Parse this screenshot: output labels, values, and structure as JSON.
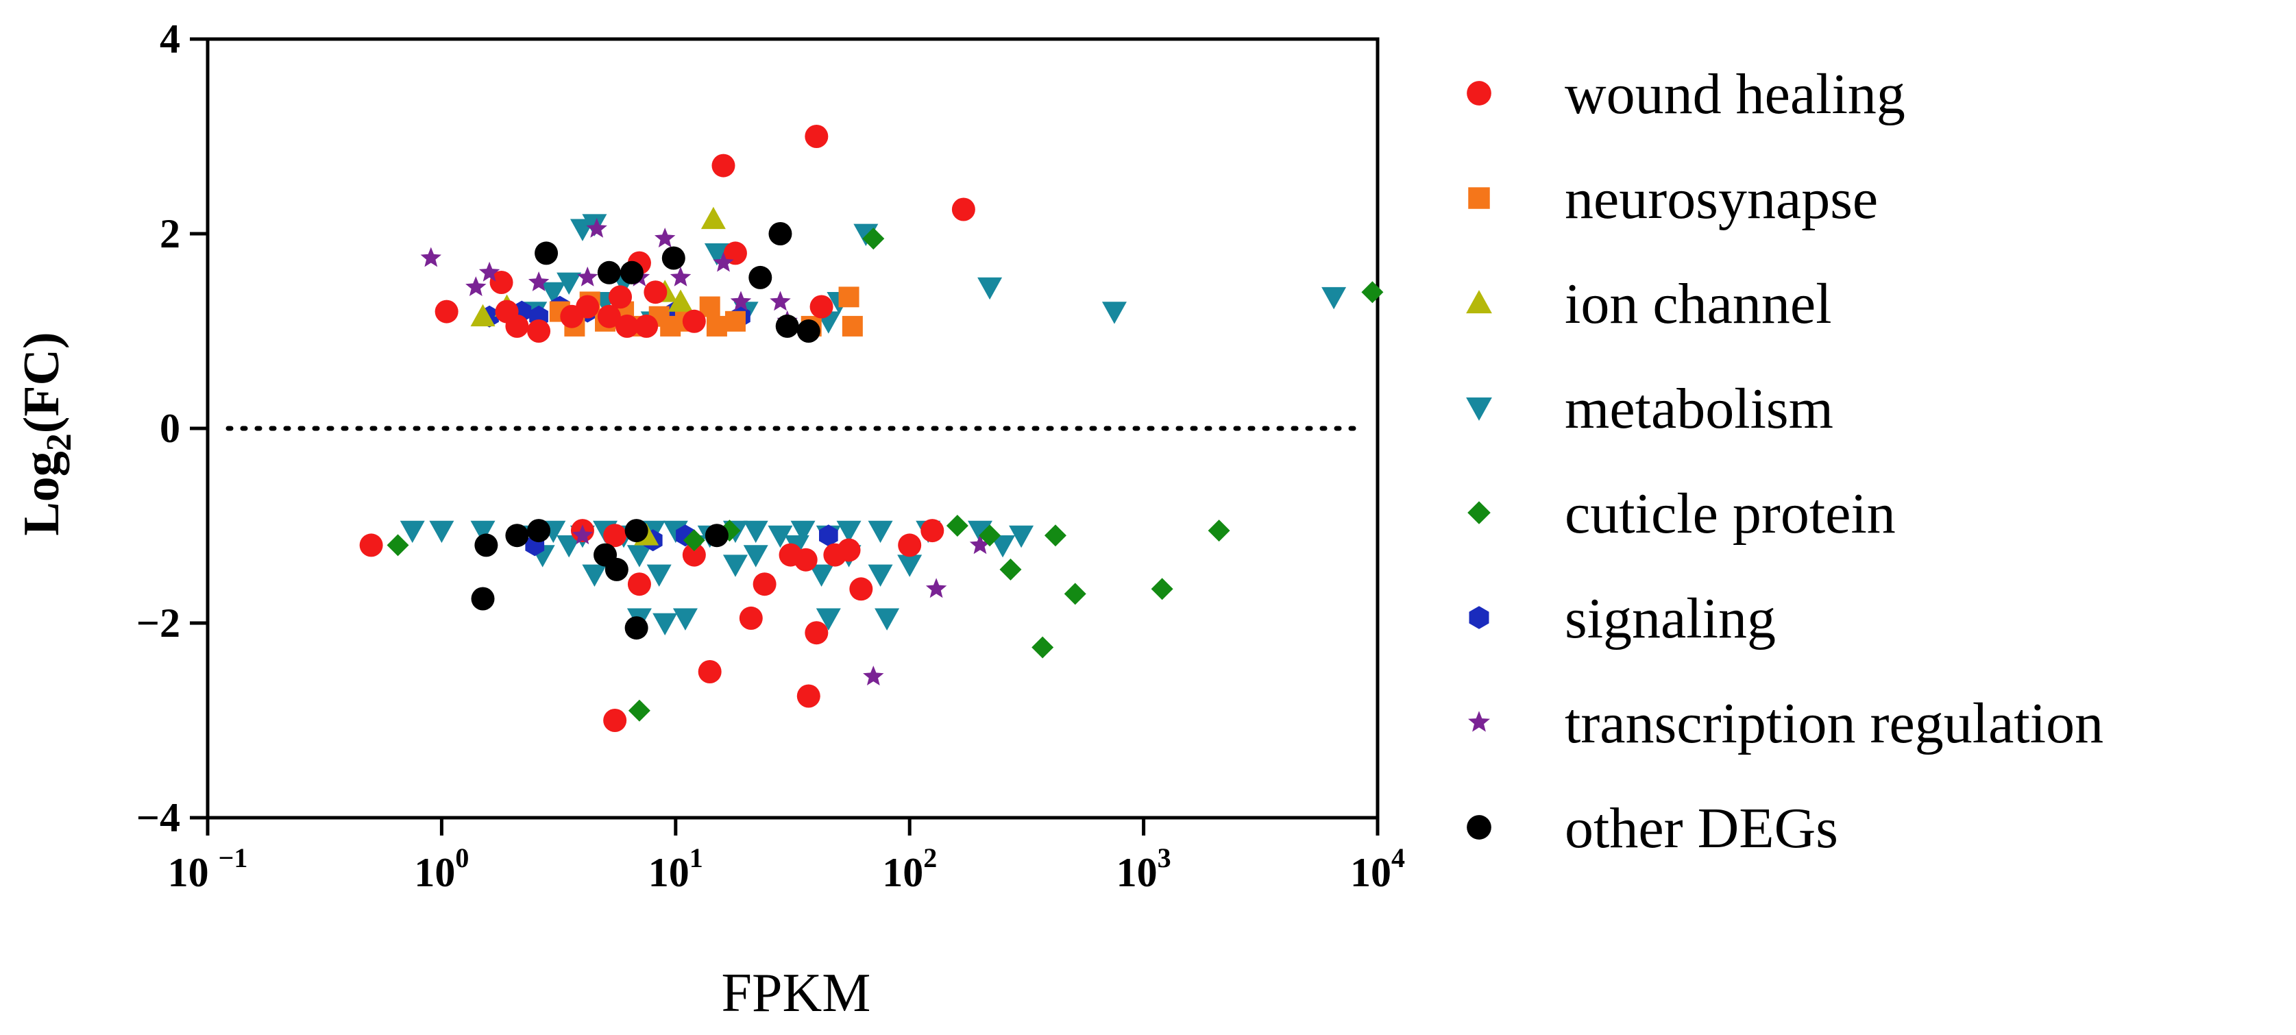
{
  "chart_data": {
    "type": "scatter",
    "title": "",
    "xlabel": "FPKM",
    "ylabel_main": "Log",
    "ylabel_sub": "2",
    "ylabel_tail": "(FC)",
    "xscale": "log10",
    "xlim": [
      0.1,
      10000
    ],
    "ylim": [
      -4,
      4
    ],
    "x_ticks": [
      {
        "value": 0.1,
        "base": "10",
        "exp": "−1"
      },
      {
        "value": 1,
        "base": "10",
        "exp": "0"
      },
      {
        "value": 10,
        "base": "10",
        "exp": "1"
      },
      {
        "value": 100,
        "base": "10",
        "exp": "2"
      },
      {
        "value": 1000,
        "base": "10",
        "exp": "3"
      },
      {
        "value": 10000,
        "base": "10",
        "exp": "4"
      }
    ],
    "y_ticks": [
      {
        "value": 4,
        "label": "4"
      },
      {
        "value": 2,
        "label": "2"
      },
      {
        "value": 0,
        "label": "0"
      },
      {
        "value": -2,
        "label": "−2"
      },
      {
        "value": -4,
        "label": "−4"
      }
    ],
    "reference_line": {
      "y": 0,
      "style": "dotted"
    },
    "legend_position": "right",
    "series": [
      {
        "name": "metabolism",
        "marker": "triangle-down",
        "color": "#17889e",
        "points": [
          [
            2.5,
            1.2
          ],
          [
            3,
            1.4
          ],
          [
            3.5,
            1.5
          ],
          [
            4,
            2.05
          ],
          [
            4.5,
            2.1
          ],
          [
            5,
            1.3
          ],
          [
            6,
            1.5
          ],
          [
            8,
            1.1
          ],
          [
            15,
            1.8
          ],
          [
            20,
            1.2
          ],
          [
            45,
            1.1
          ],
          [
            50,
            1.3
          ],
          [
            65,
            2.0
          ],
          [
            220,
            1.45
          ],
          [
            750,
            1.2
          ],
          [
            6500,
            1.35
          ],
          [
            0.75,
            -1.05
          ],
          [
            1,
            -1.05
          ],
          [
            1.5,
            -1.05
          ],
          [
            2.5,
            -1.1
          ],
          [
            3,
            -1.05
          ],
          [
            4,
            -1.1
          ],
          [
            5,
            -1.05
          ],
          [
            6,
            -1.1
          ],
          [
            8,
            -1.05
          ],
          [
            10,
            -1.05
          ],
          [
            14,
            -1.1
          ],
          [
            18,
            -1.05
          ],
          [
            22,
            -1.05
          ],
          [
            28,
            -1.1
          ],
          [
            35,
            -1.05
          ],
          [
            45,
            -1.1
          ],
          [
            55,
            -1.05
          ],
          [
            75,
            -1.05
          ],
          [
            120,
            -1.05
          ],
          [
            200,
            -1.05
          ],
          [
            300,
            -1.1
          ],
          [
            2.7,
            -1.3
          ],
          [
            3.5,
            -1.2
          ],
          [
            4.5,
            -1.5
          ],
          [
            7,
            -1.3
          ],
          [
            8.5,
            -1.5
          ],
          [
            12,
            -1.2
          ],
          [
            18,
            -1.4
          ],
          [
            22,
            -1.3
          ],
          [
            33,
            -1.2
          ],
          [
            42,
            -1.5
          ],
          [
            55,
            -1.3
          ],
          [
            75,
            -1.5
          ],
          [
            100,
            -1.4
          ],
          [
            250,
            -1.2
          ],
          [
            7,
            -1.95
          ],
          [
            9,
            -2.0
          ],
          [
            11,
            -1.95
          ],
          [
            45,
            -1.95
          ],
          [
            80,
            -1.95
          ]
        ]
      },
      {
        "name": "signaling",
        "marker": "hexagon",
        "color": "#1a2bbd",
        "points": [
          [
            1.6,
            1.15
          ],
          [
            2.2,
            1.2
          ],
          [
            2.6,
            1.15
          ],
          [
            3.2,
            1.25
          ],
          [
            4.2,
            1.2
          ],
          [
            5.5,
            1.15
          ],
          [
            10,
            1.2
          ],
          [
            19,
            1.15
          ],
          [
            2.5,
            -1.2
          ],
          [
            5.5,
            -1.1
          ],
          [
            8,
            -1.15
          ],
          [
            11,
            -1.1
          ],
          [
            45,
            -1.1
          ]
        ]
      },
      {
        "name": "neurosynapse",
        "marker": "square",
        "color": "#f5761a",
        "points": [
          [
            3.2,
            1.2
          ],
          [
            3.7,
            1.05
          ],
          [
            4.3,
            1.3
          ],
          [
            5,
            1.1
          ],
          [
            6,
            1.2
          ],
          [
            7,
            1.05
          ],
          [
            8.5,
            1.15
          ],
          [
            9.5,
            1.05
          ],
          [
            11,
            1.1
          ],
          [
            14,
            1.25
          ],
          [
            15,
            1.05
          ],
          [
            18,
            1.1
          ],
          [
            38,
            1.05
          ],
          [
            55,
            1.35
          ],
          [
            57,
            1.05
          ]
        ]
      },
      {
        "name": "ion channel",
        "marker": "triangle-up",
        "color": "#b5b80a",
        "points": [
          [
            1.5,
            1.15
          ],
          [
            1.9,
            1.25
          ],
          [
            9,
            1.4
          ],
          [
            10.5,
            1.3
          ],
          [
            14.5,
            2.15
          ],
          [
            7.5,
            -1.1
          ]
        ]
      },
      {
        "name": "wound healing",
        "marker": "circle",
        "color": "#f21a1a",
        "points": [
          [
            0.5,
            -1.2
          ],
          [
            1.05,
            1.2
          ],
          [
            1.8,
            1.5
          ],
          [
            1.9,
            1.2
          ],
          [
            2.1,
            1.05
          ],
          [
            2.6,
            1.0
          ],
          [
            3.6,
            1.15
          ],
          [
            4.2,
            1.25
          ],
          [
            5.2,
            1.15
          ],
          [
            5.8,
            1.35
          ],
          [
            6.2,
            1.05
          ],
          [
            7,
            1.7
          ],
          [
            7.5,
            1.05
          ],
          [
            8.2,
            1.4
          ],
          [
            12,
            1.1
          ],
          [
            16,
            2.7
          ],
          [
            18,
            1.8
          ],
          [
            40,
            3.0
          ],
          [
            42,
            1.25
          ],
          [
            170,
            2.25
          ],
          [
            4,
            -1.05
          ],
          [
            5.5,
            -1.1
          ],
          [
            7,
            -1.6
          ],
          [
            12,
            -1.3
          ],
          [
            14,
            -2.5
          ],
          [
            21,
            -1.95
          ],
          [
            24,
            -1.6
          ],
          [
            31,
            -1.3
          ],
          [
            36,
            -1.35
          ],
          [
            37,
            -2.75
          ],
          [
            40,
            -2.1
          ],
          [
            48,
            -1.3
          ],
          [
            55,
            -1.25
          ],
          [
            62,
            -1.65
          ],
          [
            100,
            -1.2
          ],
          [
            125,
            -1.05
          ],
          [
            5.5,
            -3.0
          ]
        ]
      },
      {
        "name": "transcription regulation",
        "marker": "star",
        "color": "#7a2394",
        "points": [
          [
            0.9,
            1.75
          ],
          [
            1.4,
            1.45
          ],
          [
            1.6,
            1.6
          ],
          [
            2.6,
            1.5
          ],
          [
            4.2,
            1.55
          ],
          [
            4.6,
            2.05
          ],
          [
            7,
            1.55
          ],
          [
            9,
            1.95
          ],
          [
            10.5,
            1.55
          ],
          [
            16,
            1.7
          ],
          [
            19,
            1.3
          ],
          [
            28,
            1.3
          ],
          [
            30,
            1.1
          ],
          [
            4,
            -1.1
          ],
          [
            200,
            -1.2
          ],
          [
            130,
            -1.65
          ],
          [
            70,
            -2.55
          ]
        ]
      },
      {
        "name": "cuticle protein",
        "marker": "diamond",
        "color": "#138a13",
        "points": [
          [
            0.65,
            -1.2
          ],
          [
            7,
            -2.9
          ],
          [
            12,
            -1.15
          ],
          [
            17,
            -1.05
          ],
          [
            160,
            -1.0
          ],
          [
            220,
            -1.1
          ],
          [
            270,
            -1.45
          ],
          [
            370,
            -2.25
          ],
          [
            420,
            -1.1
          ],
          [
            510,
            -1.7
          ],
          [
            1200,
            -1.65
          ],
          [
            2100,
            -1.05
          ],
          [
            9500,
            1.4
          ],
          [
            70,
            1.95
          ]
        ]
      },
      {
        "name": "other DEGs",
        "marker": "circle",
        "color": "#000000",
        "points": [
          [
            2.8,
            1.8
          ],
          [
            5.2,
            1.6
          ],
          [
            6.5,
            1.6
          ],
          [
            9.8,
            1.75
          ],
          [
            23,
            1.55
          ],
          [
            28,
            2.0
          ],
          [
            30,
            1.05
          ],
          [
            37,
            1.0
          ],
          [
            1.5,
            -1.75
          ],
          [
            1.55,
            -1.2
          ],
          [
            2.1,
            -1.1
          ],
          [
            2.6,
            -1.05
          ],
          [
            5,
            -1.3
          ],
          [
            5.6,
            -1.45
          ],
          [
            6.8,
            -1.05
          ],
          [
            6.8,
            -2.05
          ],
          [
            15,
            -1.1
          ]
        ]
      }
    ]
  }
}
